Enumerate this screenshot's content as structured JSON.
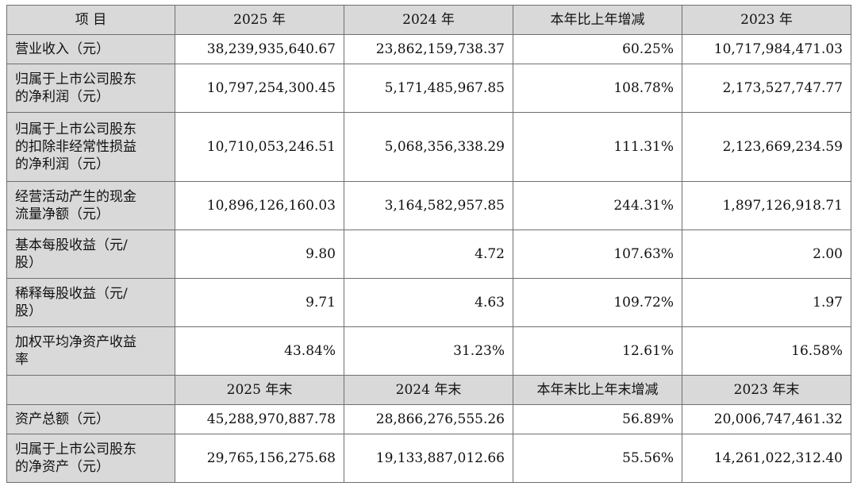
{
  "header": [
    "项 目",
    "2025 年",
    "2024 年",
    "本年比上年增减",
    "2023 年"
  ],
  "rows": [
    {
      "label": [
        "营业收入（元）"
      ],
      "values": [
        "38,239,935,640.67",
        "23,862,159,738.37",
        "60.25%",
        "10,717,984,471.03"
      ]
    },
    {
      "label": [
        "归属于上市公司股东",
        "的净利润（元）"
      ],
      "values": [
        "10,797,254,300.45",
        "5,171,485,967.85",
        "108.78%",
        "2,173,527,747.77"
      ]
    },
    {
      "label": [
        "归属于上市公司股东",
        "的扣除非经常性损益",
        "的净利润（元）"
      ],
      "values": [
        "10,710,053,246.51",
        "5,068,356,338.29",
        "111.31%",
        "2,123,669,234.59"
      ]
    },
    {
      "label": [
        "经营活动产生的现金",
        "流量净额（元）"
      ],
      "values": [
        "10,896,126,160.03",
        "3,164,582,957.85",
        "244.31%",
        "1,897,126,918.71"
      ]
    },
    {
      "label": [
        "基本每股收益（元/",
        "股）"
      ],
      "values": [
        "9.80",
        "4.72",
        "107.63%",
        "2.00"
      ]
    },
    {
      "label": [
        "稀释每股收益（元/",
        "股）"
      ],
      "values": [
        "9.71",
        "4.63",
        "109.72%",
        "1.97"
      ]
    },
    {
      "label": [
        "加权平均净资产收益",
        "率"
      ],
      "values": [
        "43.84%",
        "31.23%",
        "12.61%",
        "16.58%"
      ]
    }
  ],
  "subheader": [
    "",
    "2025 年末",
    "2024 年末",
    "本年末比上年末增减",
    "2023 年末"
  ],
  "rows2": [
    {
      "label": [
        "资产总额（元）"
      ],
      "values": [
        "45,288,970,887.78",
        "28,866,276,555.26",
        "56.89%",
        "20,006,747,461.32"
      ]
    },
    {
      "label": [
        "归属于上市公司股东",
        "的净资产（元）"
      ],
      "values": [
        "29,765,156,275.68",
        "19,133,887,012.66",
        "55.56%",
        "14,261,022,312.40"
      ]
    }
  ]
}
